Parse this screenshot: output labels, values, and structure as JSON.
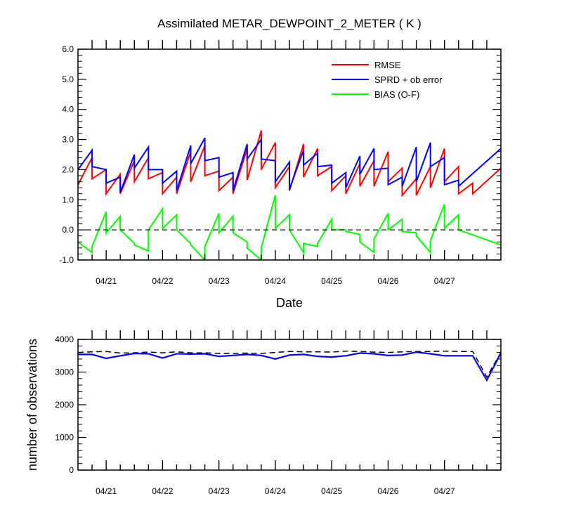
{
  "title": "Assimilated METAR_DEWPOINT_2_METER ( K )",
  "colors": {
    "rmse": "#ff0000",
    "sprd": "#0000ff",
    "bias": "#00ff00",
    "zero_line": "#000000",
    "obs_possible": "#000000",
    "obs_used": "#0000ff"
  },
  "chart_data": [
    {
      "type": "line",
      "title": "Assimilated METAR_DEWPOINT_2_METER ( K )",
      "xlabel": "Date",
      "ylabel": "",
      "x_tick_labels": [
        "04/21",
        "04/22",
        "04/23",
        "04/24",
        "04/25",
        "04/26",
        "04/27"
      ],
      "y_tick_labels": [
        "-1.0",
        "0.0",
        "1.0",
        "2.0",
        "3.0",
        "4.0",
        "5.0",
        "6.0"
      ],
      "ylim": [
        -1.0,
        6.0
      ],
      "xlim": [
        0,
        7.5
      ],
      "grid": false,
      "legend_placement": "top-right",
      "x_sawtooth_times": [
        0,
        0.25,
        0.25,
        0.5,
        0.5,
        0.75,
        0.75,
        1.0,
        1.0,
        1.25,
        1.25,
        1.5,
        1.5,
        1.75,
        1.75,
        2.0,
        2.0,
        2.25,
        2.25,
        2.5,
        2.5,
        2.75,
        2.75,
        3.0,
        3.0,
        3.25,
        3.25,
        3.5,
        3.5,
        3.75,
        3.75,
        4.0,
        4.0,
        4.25,
        4.25,
        4.5,
        4.5,
        4.75,
        4.75,
        5.0,
        5.0,
        5.25,
        5.25,
        5.5,
        5.5,
        5.75,
        5.75,
        6.0,
        6.0,
        6.25,
        6.25,
        6.5,
        6.5,
        6.75,
        6.75,
        7.0,
        7.0,
        7.25,
        7.25,
        7.5
      ],
      "series": [
        {
          "name": "RMSE",
          "color": "#ff0000",
          "values": [
            1.5,
            2.4,
            1.7,
            2.0,
            1.2,
            1.85,
            1.2,
            2.3,
            1.6,
            2.4,
            1.7,
            1.9,
            1.2,
            1.75,
            1.2,
            2.6,
            1.6,
            2.8,
            1.8,
            1.95,
            1.3,
            1.75,
            1.2,
            2.7,
            1.65,
            3.3,
            2.0,
            2.9,
            1.4,
            2.1,
            1.3,
            2.85,
            1.75,
            2.7,
            1.8,
            2.1,
            1.3,
            1.8,
            1.2,
            2.2,
            1.45,
            2.3,
            1.45,
            2.6,
            1.6,
            2.05,
            1.15,
            1.7,
            1.15,
            2.1,
            1.4,
            2.7,
            1.6,
            2.1,
            1.2,
            1.55,
            1.2,
            2.05
          ],
          "times": [
            0,
            0.25,
            0.25,
            0.5,
            0.5,
            0.75,
            0.75,
            1.0,
            1.0,
            1.25,
            1.25,
            1.5,
            1.5,
            1.75,
            1.75,
            2.0,
            2.0,
            2.25,
            2.25,
            2.5,
            2.5,
            2.75,
            2.75,
            3.0,
            3.0,
            3.25,
            3.25,
            3.5,
            3.5,
            3.75,
            3.75,
            4.0,
            4.0,
            4.25,
            4.25,
            4.5,
            4.5,
            4.75,
            4.75,
            5.0,
            5.0,
            5.25,
            5.25,
            5.5,
            5.5,
            5.75,
            5.75,
            6.0,
            6.0,
            6.25,
            6.25,
            6.5,
            6.5,
            6.75,
            6.75,
            7.0,
            7.0,
            7.5
          ]
        },
        {
          "name": "SPRD + ob error",
          "color": "#0000ff",
          "values": [
            2.0,
            2.65,
            2.1,
            2.0,
            1.55,
            1.75,
            1.25,
            2.5,
            2.05,
            2.75,
            2.0,
            2.0,
            1.55,
            1.95,
            1.3,
            2.8,
            2.2,
            3.05,
            2.3,
            2.4,
            1.75,
            1.9,
            1.3,
            2.85,
            2.35,
            3.0,
            2.35,
            2.3,
            1.6,
            2.25,
            1.35,
            2.65,
            2.15,
            2.55,
            2.1,
            2.15,
            1.55,
            1.9,
            1.4,
            2.45,
            1.85,
            2.7,
            2.0,
            2.05,
            1.5,
            1.75,
            1.45,
            2.75,
            1.6,
            2.9,
            2.1,
            2.4,
            1.5,
            1.65,
            1.45,
            2.7
          ],
          "times": [
            0,
            0.25,
            0.25,
            0.5,
            0.5,
            0.75,
            0.75,
            1.0,
            1.0,
            1.25,
            1.25,
            1.5,
            1.5,
            1.75,
            1.75,
            2.0,
            2.0,
            2.25,
            2.25,
            2.5,
            2.5,
            2.75,
            2.75,
            3.0,
            3.0,
            3.25,
            3.25,
            3.5,
            3.5,
            3.75,
            3.75,
            4.0,
            4.0,
            4.25,
            4.25,
            4.5,
            4.5,
            4.75,
            4.75,
            5.0,
            5.0,
            5.25,
            5.25,
            5.5,
            5.5,
            5.75,
            5.75,
            6.0,
            6.0,
            6.25,
            6.25,
            6.5,
            6.5,
            6.75,
            6.75,
            7.5
          ]
        },
        {
          "name": "BIAS (O-F)",
          "color": "#00ff00",
          "values": [
            -0.4,
            -0.75,
            -0.55,
            0.6,
            -0.1,
            0.45,
            0.0,
            -0.45,
            -0.5,
            -0.7,
            0.0,
            0.7,
            0.05,
            0.5,
            0.0,
            -0.45,
            -0.5,
            -1.0,
            -0.55,
            0.55,
            -0.1,
            0.45,
            -0.1,
            -0.4,
            -0.6,
            -1.0,
            -0.6,
            1.15,
            0.05,
            0.5,
            0.0,
            -0.75,
            -0.45,
            -0.55,
            -0.45,
            0.35,
            0.0,
            0.0,
            -0.05,
            -0.15,
            -0.4,
            -0.75,
            -0.3,
            0.55,
            0.0,
            0.35,
            -0.05,
            -0.1,
            -0.2,
            -0.75,
            -0.35,
            0.85,
            0.05,
            0.5,
            0.0,
            -0.5
          ],
          "times": [
            0,
            0.25,
            0.25,
            0.5,
            0.5,
            0.75,
            0.75,
            1.0,
            1.0,
            1.25,
            1.25,
            1.5,
            1.5,
            1.75,
            1.75,
            2.0,
            2.0,
            2.25,
            2.25,
            2.5,
            2.5,
            2.75,
            2.75,
            3.0,
            3.0,
            3.25,
            3.25,
            3.5,
            3.5,
            3.75,
            3.75,
            4.0,
            4.0,
            4.25,
            4.25,
            4.5,
            4.5,
            4.75,
            4.75,
            5.0,
            5.0,
            5.25,
            5.25,
            5.5,
            5.5,
            5.75,
            5.75,
            6.0,
            6.0,
            6.25,
            6.25,
            6.5,
            6.5,
            6.75,
            6.75,
            7.5
          ]
        }
      ],
      "reference_line": {
        "y": 0.0,
        "style": "dashed"
      }
    },
    {
      "type": "line",
      "title": "",
      "xlabel": "",
      "ylabel": "number of observations",
      "x_tick_labels": [
        "04/21",
        "04/22",
        "04/23",
        "04/24",
        "04/25",
        "04/26",
        "04/27"
      ],
      "y_tick_labels": [
        "0",
        "1000",
        "2000",
        "3000",
        "4000"
      ],
      "ylim": [
        0,
        4000
      ],
      "xlim": [
        0,
        7.5
      ],
      "grid": false,
      "times": [
        0,
        0.25,
        0.5,
        0.75,
        1.0,
        1.25,
        1.5,
        1.75,
        2.0,
        2.25,
        2.5,
        2.75,
        3.0,
        3.25,
        3.5,
        3.75,
        4.0,
        4.25,
        4.5,
        4.75,
        5.0,
        5.25,
        5.5,
        5.75,
        6.0,
        6.25,
        6.5,
        6.75,
        7.0,
        7.25,
        7.5
      ],
      "series": [
        {
          "style": "dashed",
          "color": "#000000",
          "values": [
            3600,
            3620,
            3630,
            3580,
            3590,
            3610,
            3590,
            3620,
            3590,
            3590,
            3570,
            3570,
            3580,
            3570,
            3600,
            3630,
            3620,
            3620,
            3610,
            3640,
            3630,
            3610,
            3600,
            3620,
            3630,
            3630,
            3640,
            3630,
            3630,
            2850,
            3600
          ]
        },
        {
          "style": "solid",
          "color": "#0000ff",
          "values": [
            3540,
            3540,
            3420,
            3500,
            3570,
            3560,
            3430,
            3560,
            3550,
            3560,
            3480,
            3510,
            3540,
            3510,
            3400,
            3520,
            3540,
            3480,
            3460,
            3500,
            3580,
            3560,
            3510,
            3520,
            3610,
            3560,
            3500,
            3500,
            3500,
            2750,
            3580
          ]
        }
      ]
    }
  ]
}
